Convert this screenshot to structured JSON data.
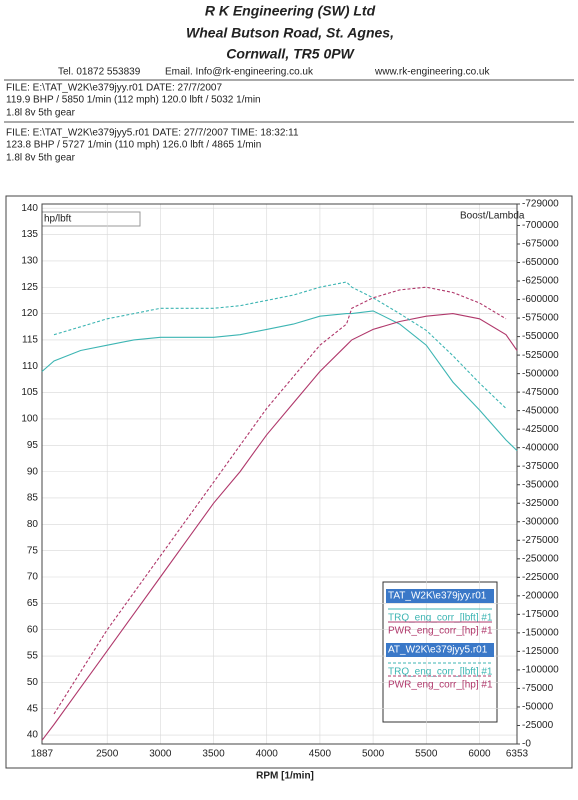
{
  "header": {
    "lines": [
      "R K Engineering (SW) Ltd",
      "Wheal Butson Road, St. Agnes,",
      "Cornwall, TR5 0PW"
    ],
    "contact": [
      "Tel. 01872 553839",
      "Email. Info@rk-engineering.co.uk",
      "www.rk-engineering.co.uk"
    ]
  },
  "files": [
    [
      "FILE: E:\\TAT_W2K\\e379jyy.r01  DATE: 27/7/2007",
      "119.9 BHP / 5850 1/min (112 mph)    120.0 lbft / 5032 1/min",
      "1.8l 8v 5th gear"
    ],
    [
      "FILE: E:\\TAT_W2K\\e379jyy5.r01  DATE: 27/7/2007  TIME: 18:32:11",
      "123.8 BHP / 5727 1/min (110 mph)    126.0 lbft / 4865 1/min",
      "1.8l 8v 5th gear"
    ]
  ],
  "chart_data": {
    "type": "line",
    "y_label": "hp/lbft",
    "y2_label": "Boost/Lambda",
    "x_label": "RPM  [1/min]",
    "x": [
      1887,
      2000,
      2250,
      2500,
      2750,
      3000,
      3250,
      3500,
      3750,
      4000,
      4250,
      4500,
      4750,
      4800,
      5000,
      5250,
      5500,
      5750,
      6000,
      6250,
      6353
    ],
    "xlim": [
      1887,
      6353
    ],
    "xticks": [
      1887,
      2500,
      3000,
      3500,
      4000,
      4500,
      5000,
      5500,
      6000,
      6353
    ],
    "ylim": [
      38.3,
      140.8
    ],
    "yticks": [
      40,
      45,
      50,
      55,
      60,
      65,
      70,
      75,
      80,
      85,
      90,
      95,
      100,
      105,
      110,
      115,
      120,
      125,
      130,
      135,
      140
    ],
    "y2lim": [
      0,
      -729000
    ],
    "y2ticks": [
      -729000,
      -700000,
      -675000,
      -650000,
      -625000,
      -600000,
      -575000,
      -550000,
      -525000,
      -500000,
      -475000,
      -450000,
      -425000,
      -400000,
      -375000,
      -350000,
      -325000,
      -300000,
      -275000,
      -250000,
      -225000,
      -200000,
      -175000,
      -150000,
      -125000,
      -100000,
      -75000,
      -50000,
      -25000,
      {
        "value": 0,
        "label": "-0"
      }
    ],
    "grid": true,
    "runs": [
      {
        "name": "TAT_W2K\\e379jyy.r01",
        "dashed": false,
        "series": [
          {
            "name": "TRQ_eng_corr_[lbft] #1",
            "color": "#3db5b3",
            "values": [
              109,
              111,
              113,
              114,
              115,
              115.5,
              115.5,
              115.5,
              116,
              117,
              118,
              119.5,
              120,
              120,
              120.5,
              118,
              114,
              107,
              101.7,
              96,
              94
            ]
          },
          {
            "name": "PWR_eng_corr_[hp] #1",
            "color": "#b0386b",
            "values": [
              39,
              42,
              49,
              56,
              63,
              70,
              77,
              84,
              90,
              97,
              103,
              109,
              114,
              115,
              117,
              118.5,
              119.5,
              120,
              119,
              116,
              113
            ]
          }
        ]
      },
      {
        "name": "AT_W2K\\e379jyy5.r01",
        "dashed": true,
        "series": [
          {
            "name": "TRQ_eng_corr_[lbft] #1",
            "color": "#3db5b3",
            "values": [
              null,
              116,
              117.5,
              119,
              120,
              121,
              121,
              121,
              121.5,
              122.5,
              123.5,
              125,
              126,
              125,
              123,
              120,
              116.8,
              112,
              106.8,
              102,
              null
            ]
          },
          {
            "name": "PWR_eng_corr_[hp] #1",
            "color": "#b0386b",
            "values": [
              null,
              44,
              52,
              60,
              67,
              74,
              81,
              88,
              95,
              102,
              108,
              114,
              118,
              121,
              123,
              124.5,
              125,
              124,
              122,
              119,
              null
            ]
          }
        ]
      }
    ]
  }
}
